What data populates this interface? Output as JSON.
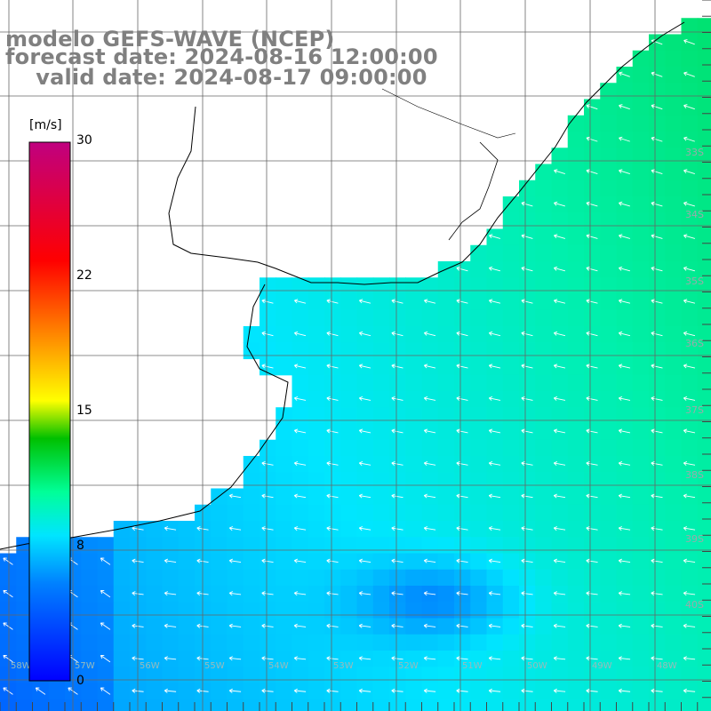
{
  "title": {
    "line1": "modelo GEFS-WAVE (NCEP)",
    "line2": "forecast date: 2024-08-16 12:00:00",
    "line3": "    valid date: 2024-08-17 09:00:00"
  },
  "colorbar": {
    "unit": "[m/s]",
    "ticks": [
      "30",
      "22",
      "15",
      "8",
      "0"
    ],
    "tick_values": [
      30,
      22,
      15,
      8,
      0
    ],
    "colors": [
      "#0000ff",
      "#0080ff",
      "#00e5ff",
      "#00ff80",
      "#00c000",
      "#ffff00",
      "#ff8000",
      "#ff0000",
      "#c0007f"
    ]
  },
  "map": {
    "latitude_labels": [
      "33S",
      "34S",
      "35S",
      "36S",
      "37S",
      "38S",
      "39S",
      "40S"
    ],
    "bottom_labels": [
      "58W",
      "57W",
      "56W",
      "55W",
      "54W",
      "53W",
      "52W",
      "51W",
      "50W",
      "49W",
      "48W"
    ],
    "land_color": "#ffffff",
    "wind_field": {
      "dominant_direction": "from east toward west-northwest",
      "speed_range_ms": [
        5,
        11
      ]
    }
  }
}
